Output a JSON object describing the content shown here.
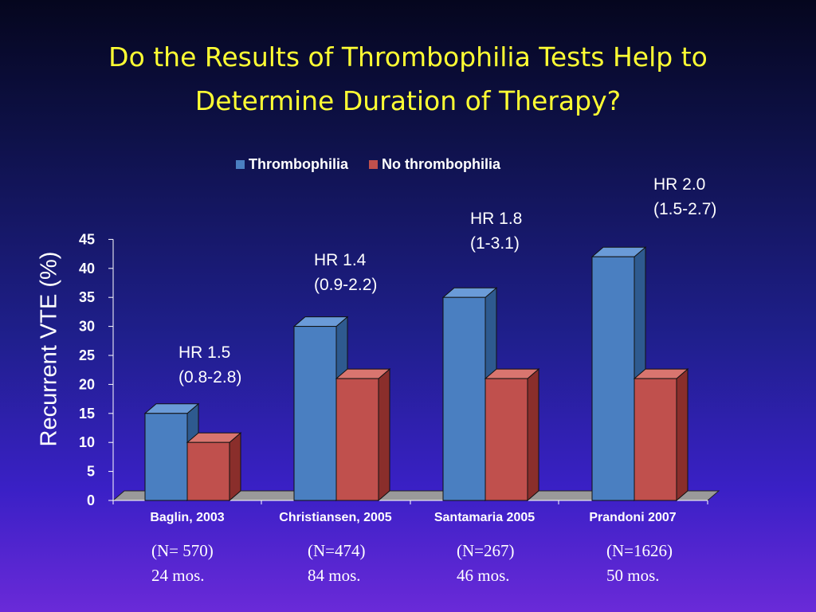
{
  "title_lines": [
    "Do the Results of Thrombophilia Tests Help to",
    "Determine Duration of Therapy?"
  ],
  "colors": {
    "thrombophilia": "#4a7fc1",
    "no_thrombophilia": "#c0504d",
    "title": "#ffff33"
  },
  "chart_data": {
    "type": "bar",
    "categories": [
      "Baglin, 2003",
      "Christiansen, 2005",
      "Santamaria 2005",
      "Prandoni 2007"
    ],
    "series": [
      {
        "name": "Thrombophilia",
        "values": [
          15,
          30,
          35,
          42
        ]
      },
      {
        "name": "No thrombophilia",
        "values": [
          10,
          21,
          21,
          21
        ]
      }
    ],
    "ylabel": "Recurrent VTE (%)",
    "ylim": [
      0,
      45
    ],
    "yticks": [
      "0",
      "5",
      "10",
      "15",
      "20",
      "25",
      "30",
      "35",
      "40",
      "45"
    ],
    "legend_position": "top",
    "annotations": [
      {
        "line1": "HR 1.5",
        "line2": "(0.8-2.8)"
      },
      {
        "line1": "HR 1.4",
        "line2": "(0.9-2.2)"
      },
      {
        "line1": "HR 1.8",
        "line2": "(1-3.1)"
      },
      {
        "line1": "HR 2.0",
        "line2": "(1.5-2.7)"
      }
    ],
    "notes": [
      {
        "n": "(N= 570)",
        "duration": "24 mos."
      },
      {
        "n": "(N=474)",
        "duration": "84 mos."
      },
      {
        "n": "(N=267)",
        "duration": "46 mos."
      },
      {
        "n": "(N=1626)",
        "duration": "50 mos."
      }
    ]
  }
}
